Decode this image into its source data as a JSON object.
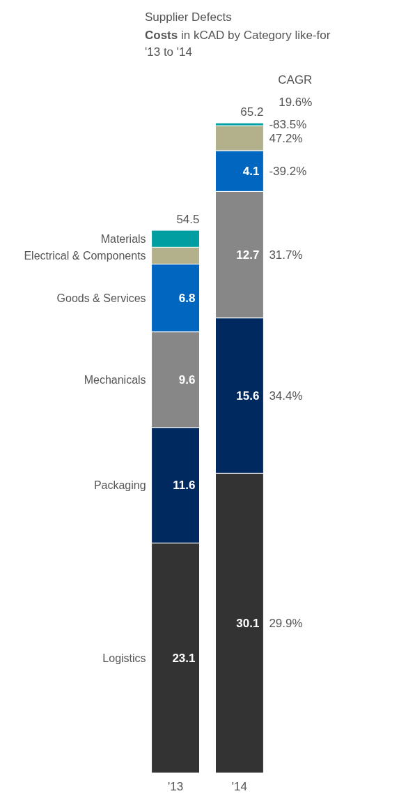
{
  "chart_data": {
    "type": "bar",
    "stacked": true,
    "title": "Supplier Defects",
    "subtitle": "Costs in kCAD by Category like-for '13 to '14",
    "categories": [
      "'13",
      "'14"
    ],
    "tick_labels": "x",
    "series": [
      {
        "name": "Logistics",
        "color": "#333333",
        "values": [
          23.1,
          30.1
        ],
        "value_labels": [
          "23.1",
          "30.1"
        ]
      },
      {
        "name": "Packaging",
        "color": "#002960",
        "values": [
          11.6,
          15.6
        ],
        "value_labels": [
          "11.6",
          "15.6"
        ]
      },
      {
        "name": "Mechanicals",
        "color": "#878787",
        "values": [
          9.6,
          12.7
        ],
        "value_labels": [
          "9.6",
          "12.7"
        ]
      },
      {
        "name": "Goods & Services",
        "color": "#0066c0",
        "values": [
          6.8,
          4.1
        ],
        "value_labels": [
          "6.8",
          "4.1"
        ]
      },
      {
        "name": "Electrical & Components",
        "color": "#b3b08c",
        "values": [
          1.7,
          2.5
        ],
        "value_labels": [
          null,
          null
        ]
      },
      {
        "name": "Materials",
        "color": "#009ea0",
        "values": [
          1.7,
          0.28
        ],
        "value_labels": [
          null,
          null
        ]
      }
    ],
    "totals": [
      "54.5",
      "65.2"
    ],
    "annotations": [
      "CAGR",
      "19.6%",
      "29.9%",
      "34.4%",
      "31.7%",
      "-39.2%",
      "47.2%",
      "-83.5%"
    ]
  }
}
